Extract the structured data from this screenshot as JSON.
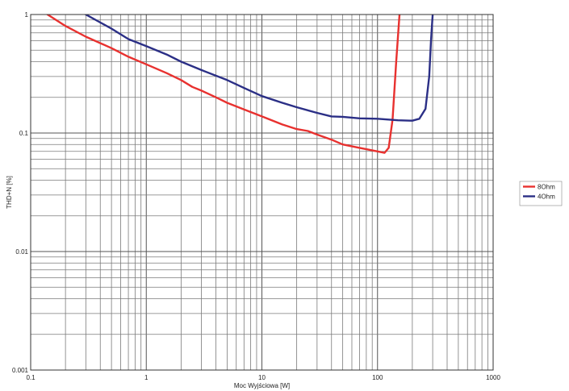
{
  "chart_data": {
    "type": "line",
    "xlabel": "Moc Wyjściowa [W]",
    "ylabel": "THD+N [%]",
    "x_scale": "log",
    "y_scale": "log",
    "xlim": [
      0.1,
      1000
    ],
    "ylim": [
      0.001,
      1
    ],
    "x_ticks": [
      "0.1",
      "1",
      "10",
      "100",
      "1000"
    ],
    "y_ticks": [
      "0.001",
      "0.01",
      "0.1",
      "1"
    ],
    "grid": true,
    "legend_position": "right",
    "series": [
      {
        "name": "8Ohm",
        "color": "#e8312f",
        "x": [
          0.14,
          0.2,
          0.3,
          0.5,
          0.7,
          1,
          1.5,
          2,
          2.5,
          3,
          4,
          5,
          7,
          10,
          15,
          20,
          25,
          30,
          40,
          50,
          70,
          100,
          115,
          125,
          135,
          145,
          155
        ],
        "y": [
          1.0,
          0.8,
          0.65,
          0.52,
          0.44,
          0.38,
          0.32,
          0.28,
          0.245,
          0.228,
          0.2,
          0.18,
          0.158,
          0.138,
          0.118,
          0.108,
          0.104,
          0.097,
          0.088,
          0.08,
          0.075,
          0.07,
          0.068,
          0.075,
          0.13,
          0.4,
          1.0
        ]
      },
      {
        "name": "4Ohm",
        "color": "#2b2f86",
        "x": [
          0.3,
          0.5,
          0.7,
          1,
          1.5,
          2,
          3,
          5,
          7,
          10,
          15,
          20,
          30,
          40,
          50,
          70,
          100,
          150,
          200,
          230,
          260,
          280,
          290,
          300
        ],
        "y": [
          1.0,
          0.76,
          0.62,
          0.54,
          0.46,
          0.4,
          0.34,
          0.28,
          0.24,
          0.205,
          0.18,
          0.165,
          0.148,
          0.138,
          0.137,
          0.133,
          0.132,
          0.128,
          0.127,
          0.132,
          0.16,
          0.3,
          0.6,
          1.0
        ]
      }
    ]
  }
}
